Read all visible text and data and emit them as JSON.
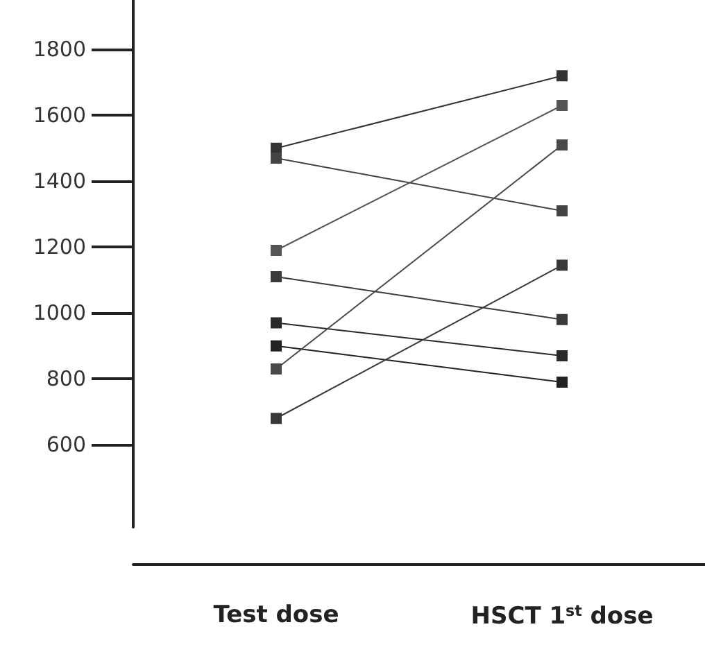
{
  "chart_data": {
    "type": "line",
    "categories": [
      "Test dose",
      "HSCT 1$^{st}$ dose"
    ],
    "series": [
      {
        "color": "#333333",
        "values": [
          1500,
          1720
        ]
      },
      {
        "color": "#444444",
        "values": [
          1470,
          1310
        ]
      },
      {
        "color": "#555555",
        "values": [
          1190,
          1630
        ]
      },
      {
        "color": "#3a3a3a",
        "values": [
          1110,
          980
        ]
      },
      {
        "color": "#2a2a2a",
        "values": [
          970,
          870
        ]
      },
      {
        "color": "#222222",
        "values": [
          900,
          790
        ]
      },
      {
        "color": "#4a4a4a",
        "values": [
          830,
          1510
        ]
      },
      {
        "color": "#383838",
        "values": [
          680,
          1145
        ]
      }
    ],
    "ylim": [
      350,
      1950
    ],
    "yticks": [
      600,
      800,
      1000,
      1200,
      1400,
      1600,
      1800
    ],
    "grid": false,
    "marker": "square",
    "line_style": "solid"
  }
}
